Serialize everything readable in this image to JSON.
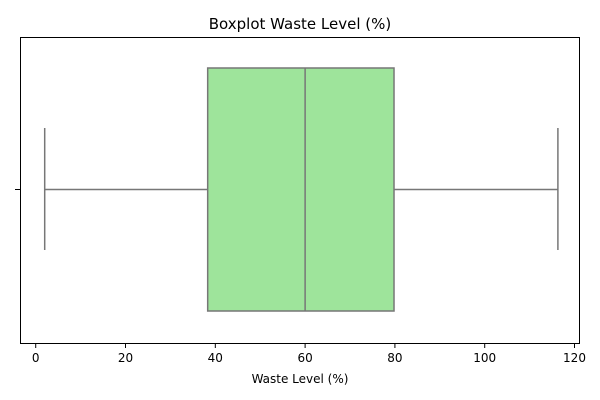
{
  "chart_data": {
    "type": "boxplot",
    "title": "Boxplot Waste Level (%)",
    "xlabel": "Waste Level (%)",
    "ylabel": "",
    "orientation": "horizontal",
    "xlim": [
      -3.5,
      121.0
    ],
    "xticks": [
      0,
      20,
      40,
      60,
      80,
      100,
      120
    ],
    "grid": false,
    "box": {
      "whisker_low": 2,
      "q1": 38.3,
      "median": 60,
      "q3": 79.8,
      "whisker_high": 116.3
    },
    "colors": {
      "box_fill": "#9ee49b",
      "line": "#777777",
      "axis": "#000000"
    }
  }
}
